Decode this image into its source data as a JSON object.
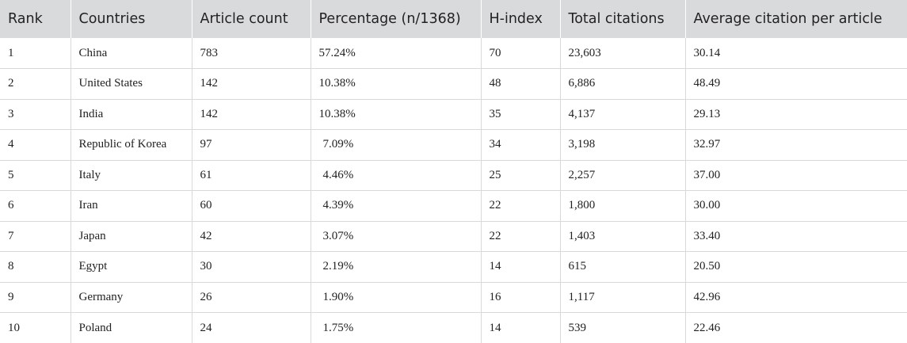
{
  "table": {
    "headers": [
      "Rank",
      "Countries",
      "Article count",
      "Percentage (n/1368)",
      "H-index",
      "Total citations",
      "Average citation per article"
    ],
    "rows": [
      [
        "1",
        "China",
        "783",
        "57.24%",
        "70",
        "23,603",
        "30.14"
      ],
      [
        "2",
        "United States",
        "142",
        "10.38%",
        "48",
        "6,886",
        "48.49"
      ],
      [
        "3",
        "India",
        "142",
        "10.38%",
        "35",
        "4,137",
        "29.13"
      ],
      [
        "4",
        "Republic of Korea",
        "97",
        "7.09%",
        "34",
        "3,198",
        "32.97"
      ],
      [
        "5",
        "Italy",
        "61",
        "4.46%",
        "25",
        "2,257",
        "37.00"
      ],
      [
        "6",
        "Iran",
        "60",
        "4.39%",
        "22",
        "1,800",
        "30.00"
      ],
      [
        "7",
        "Japan",
        "42",
        "3.07%",
        "22",
        "1,403",
        "33.40"
      ],
      [
        "8",
        "Egypt",
        "30",
        "2.19%",
        "14",
        "615",
        "20.50"
      ],
      [
        "9",
        "Germany",
        "26",
        "1.90%",
        "16",
        "1,117",
        "42.96"
      ],
      [
        "10",
        "Poland",
        "24",
        "1.75%",
        "14",
        "539",
        "22.46"
      ]
    ]
  }
}
